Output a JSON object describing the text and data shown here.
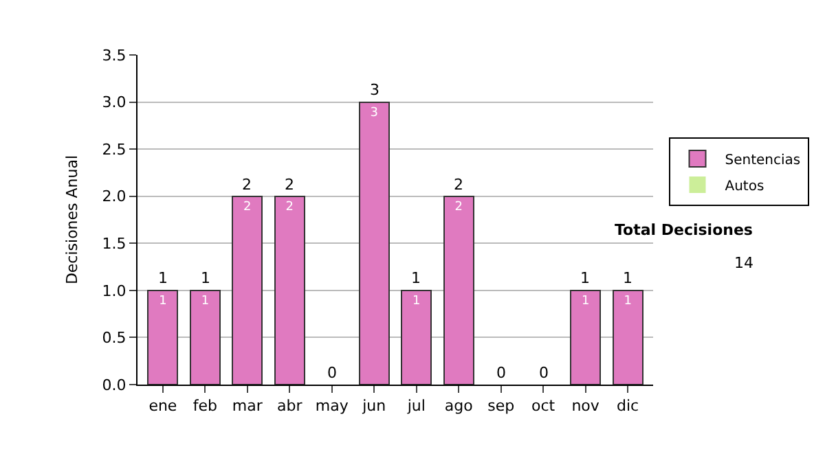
{
  "chart_data": {
    "type": "bar",
    "stacked": true,
    "ylabel": "Decisiones Anual",
    "categories": [
      "ene",
      "feb",
      "mar",
      "abr",
      "may",
      "jun",
      "jul",
      "ago",
      "sep",
      "oct",
      "nov",
      "dic"
    ],
    "series": [
      {
        "name": "Sentencias",
        "color": "#e07ac0",
        "values": [
          1,
          1,
          2,
          2,
          0,
          3,
          1,
          2,
          0,
          0,
          1,
          1
        ],
        "value_labels": [
          "1",
          "1",
          "2",
          "2",
          null,
          "3",
          "1",
          "2",
          null,
          null,
          "1",
          "1"
        ]
      },
      {
        "name": "Autos",
        "color": "#ccee99",
        "values": [
          0,
          0,
          0,
          0,
          0,
          0,
          0,
          0,
          0,
          0,
          0,
          0
        ]
      }
    ],
    "totals": [
      "1",
      "1",
      "2",
      "2",
      "0",
      "3",
      "1",
      "2",
      "0",
      "0",
      "1",
      "1"
    ],
    "ylim": [
      0,
      3.5
    ],
    "yticks": [
      {
        "value": 0,
        "label": "0.0"
      },
      0.5,
      {
        "value": 1,
        "label": "1.0"
      },
      1.5,
      {
        "value": 2,
        "label": "2.0"
      },
      2.5,
      {
        "value": 3,
        "label": "3.0"
      },
      3.5
    ],
    "grid": "y",
    "legend": "right",
    "annotations": [
      "Total Decisiones",
      "14"
    ]
  }
}
